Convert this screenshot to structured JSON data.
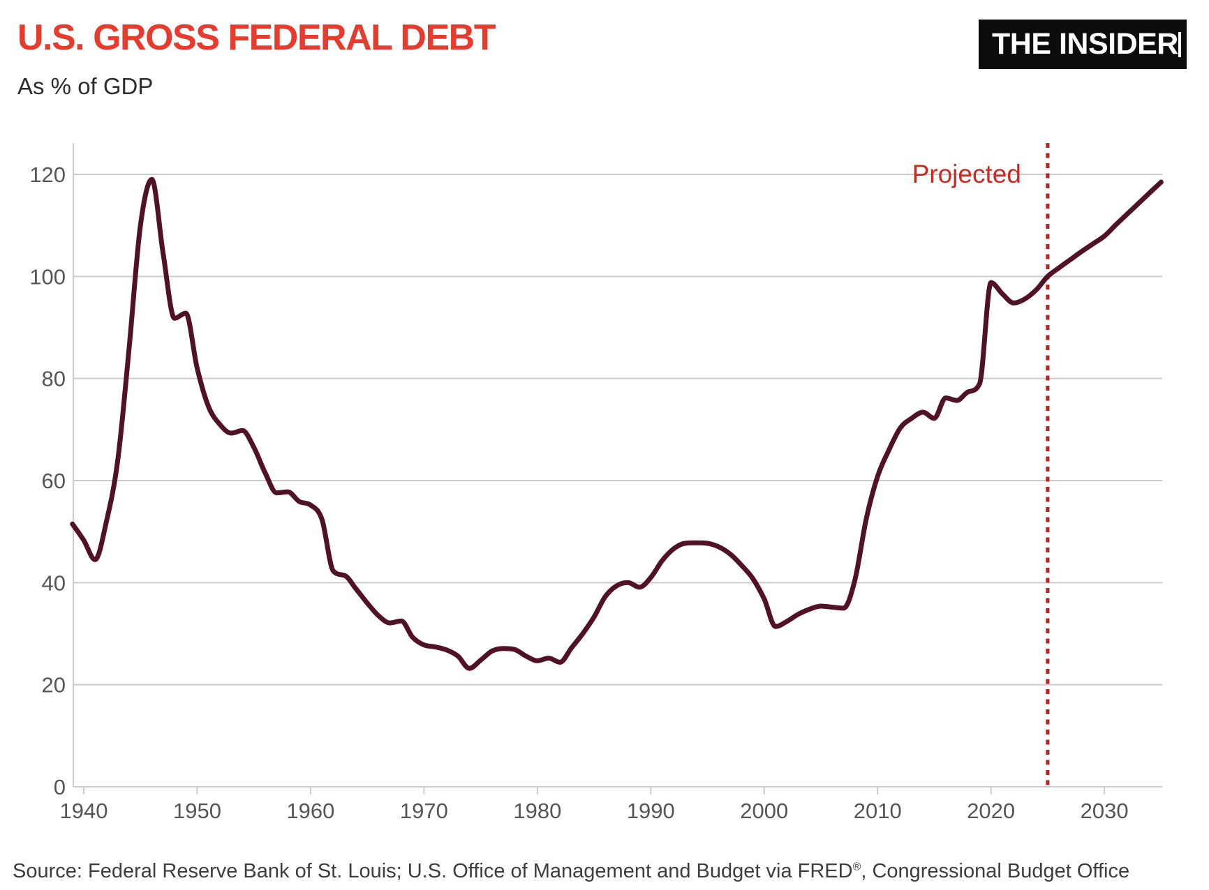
{
  "header": {
    "title": "U.S. GROSS FEDERAL DEBT",
    "subtitle": "As % of GDP"
  },
  "brand": {
    "name": "THE INSIDER"
  },
  "annotation": {
    "projected_label": "Projected"
  },
  "source": {
    "pre": "Source: Federal Reserve Bank of St. Louis; U.S. Office of Management and Budget via FRED",
    "sup": "®",
    "post": ", Congressional Budget Office"
  },
  "colors": {
    "title_red": "#e73b2d",
    "text_dark": "#2d2d2d",
    "line_maroon": "#511226",
    "projection_red": "#ca2a22",
    "divider_red": "#b42322",
    "grid_gray": "#cbcbcb",
    "axis_label_gray": "#555555",
    "source_text": "#3d3d3d",
    "logo_bg": "#0c0c0c",
    "logo_text": "#ffffff",
    "background": "#ffffff"
  },
  "chart_data": {
    "type": "line",
    "title": "U.S. GROSS FEDERAL DEBT",
    "ylabel": "As % of GDP",
    "x": [
      1939,
      1940,
      1941,
      1942,
      1943,
      1944,
      1945,
      1946,
      1947,
      1948,
      1949,
      1950,
      1951,
      1952,
      1953,
      1954,
      1955,
      1956,
      1957,
      1958,
      1959,
      1960,
      1961,
      1962,
      1963,
      1964,
      1965,
      1966,
      1967,
      1968,
      1969,
      1970,
      1971,
      1972,
      1973,
      1974,
      1975,
      1976,
      1977,
      1978,
      1979,
      1980,
      1981,
      1982,
      1983,
      1984,
      1985,
      1986,
      1987,
      1988,
      1989,
      1990,
      1991,
      1992,
      1993,
      1994,
      1995,
      1996,
      1997,
      1998,
      1999,
      2000,
      2001,
      2002,
      2003,
      2004,
      2005,
      2006,
      2007,
      2008,
      2009,
      2010,
      2011,
      2012,
      2013,
      2014,
      2015,
      2016,
      2017,
      2018,
      2019,
      2020,
      2021,
      2022,
      2023,
      2024,
      2025,
      2026,
      2027,
      2028,
      2029,
      2030,
      2031,
      2032,
      2033,
      2034,
      2035
    ],
    "series": [
      {
        "name": "U.S. gross federal debt as % of GDP",
        "values": [
          51.5,
          48.3,
          44.5,
          52,
          64,
          86,
          110,
          119,
          104.5,
          91.8,
          92.8,
          82,
          74.5,
          71,
          69.3,
          69.8,
          66.5,
          61.5,
          57.6,
          57.8,
          55.9,
          55.2,
          52.4,
          42.3,
          41.4,
          38.8,
          36,
          33.5,
          32.1,
          32.5,
          29.3,
          27.8,
          27.4,
          26.8,
          25.6,
          23.2,
          24.8,
          26.6,
          27.1,
          26.9,
          25.6,
          24.7,
          25.2,
          24.4,
          27.2,
          30,
          33.3,
          37.3,
          39.4,
          40,
          39.1,
          41,
          44.3,
          46.6,
          47.7,
          47.8,
          47.7,
          47,
          45.6,
          43.4,
          40.8,
          36.8,
          31.4,
          32.4,
          33.8,
          34.8,
          35.4,
          35.2,
          35,
          40.5,
          52.5,
          60.8,
          66,
          70.3,
          72.2,
          73.4,
          72.2,
          76.2,
          75.7,
          77.4,
          79,
          98.8,
          96.6,
          94.8,
          95.6,
          97.4,
          100,
          101.7,
          103.3,
          104.9,
          106.4,
          107.9,
          110.1,
          112.2,
          114.3,
          116.4,
          118.5
        ]
      }
    ],
    "xticks": [
      1940,
      1950,
      1960,
      1970,
      1980,
      1990,
      2000,
      2010,
      2020,
      2030
    ],
    "yticks": [
      0,
      20,
      40,
      60,
      80,
      100,
      120
    ],
    "xlim": [
      1939,
      2035
    ],
    "ylim": [
      0,
      124
    ],
    "grid": true,
    "legend_position": "none",
    "projection_start_year": 2025,
    "projection_label": "Projected"
  }
}
